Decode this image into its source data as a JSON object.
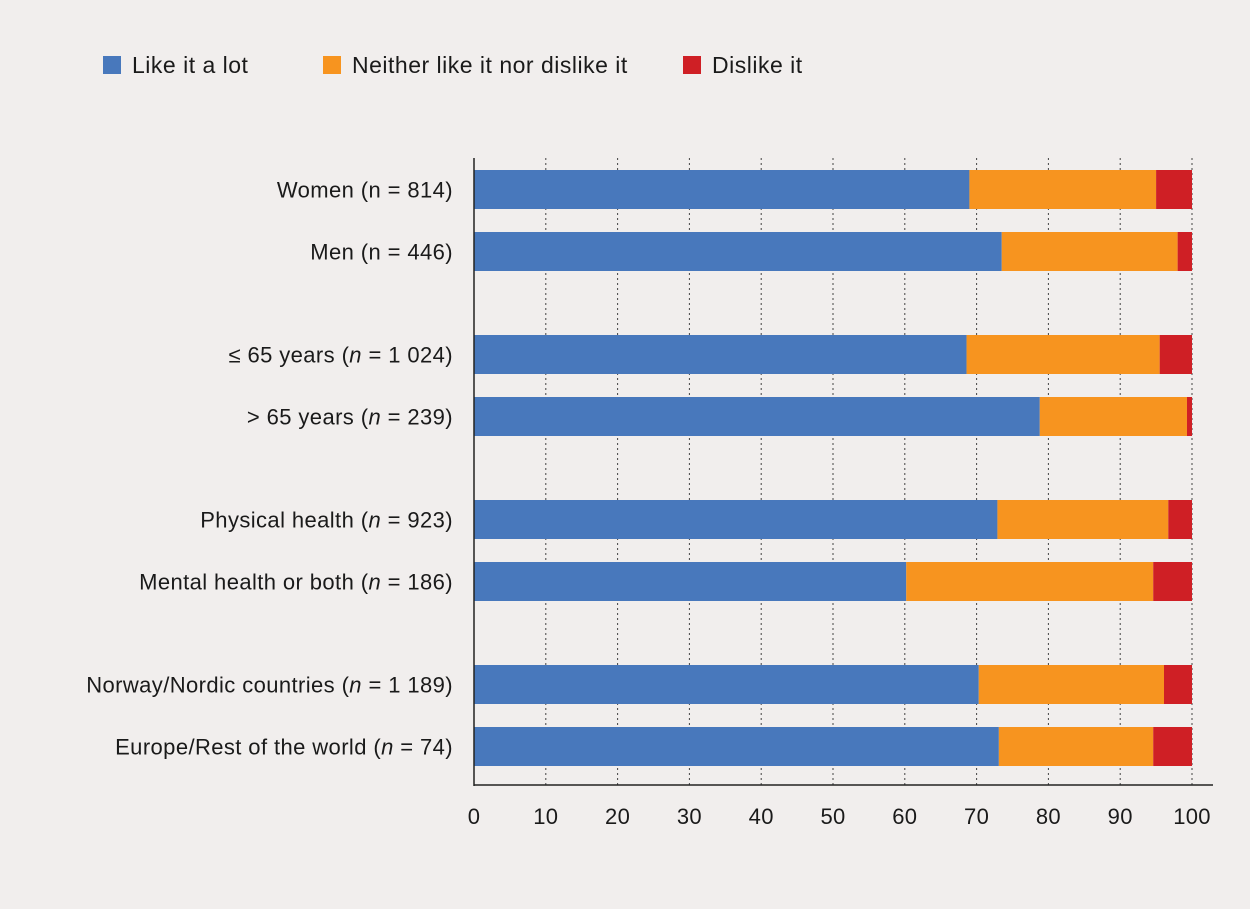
{
  "chart_data": {
    "type": "bar",
    "orientation": "horizontal",
    "stacked": true,
    "title": "",
    "xlabel": "",
    "ylabel": "",
    "xlim": [
      0,
      100
    ],
    "xticks": [
      0,
      10,
      20,
      30,
      40,
      50,
      60,
      70,
      80,
      90,
      100
    ],
    "grid": "vertical dotted",
    "legend_position": "top-left",
    "groups": [
      {
        "rows": [
          {
            "label_pre": "Women (n = 814)",
            "italic": "",
            "label_post": ""
          },
          {
            "label_pre": "Men (n = 446)",
            "italic": "",
            "label_post": ""
          }
        ]
      },
      {
        "rows": [
          {
            "label_pre": "≤ 65 years (",
            "italic": "n",
            "label_post": " = 1 024)"
          },
          {
            "label_pre": "> 65 years (",
            "italic": "n",
            "label_post": " = 239)"
          }
        ]
      },
      {
        "rows": [
          {
            "label_pre": "Physical health (",
            "italic": "n",
            "label_post": " = 923)"
          },
          {
            "label_pre": "Mental health or both (",
            "italic": "n",
            "label_post": " = 186)"
          }
        ]
      },
      {
        "rows": [
          {
            "label_pre": "Norway/Nordic countries (",
            "italic": "n",
            "label_post": " = 1 189)"
          },
          {
            "label_pre": "Europe/Rest of the world (",
            "italic": "n",
            "label_post": " = 74)"
          }
        ]
      }
    ],
    "series": [
      {
        "name": "Like it a lot",
        "color": "#4878bc",
        "values": [
          69,
          73.5,
          68.6,
          78.8,
          72.9,
          60.2,
          70.3,
          73.1
        ]
      },
      {
        "name": "Neither like it nor dislike it",
        "color": "#f7941f",
        "values": [
          26,
          24.5,
          26.9,
          20.5,
          23.8,
          34.4,
          25.8,
          21.5
        ]
      },
      {
        "name": "Dislike it",
        "color": "#cf1f25",
        "values": [
          5,
          2,
          4.5,
          0.7,
          3.3,
          5.4,
          3.9,
          5.4
        ]
      }
    ]
  }
}
